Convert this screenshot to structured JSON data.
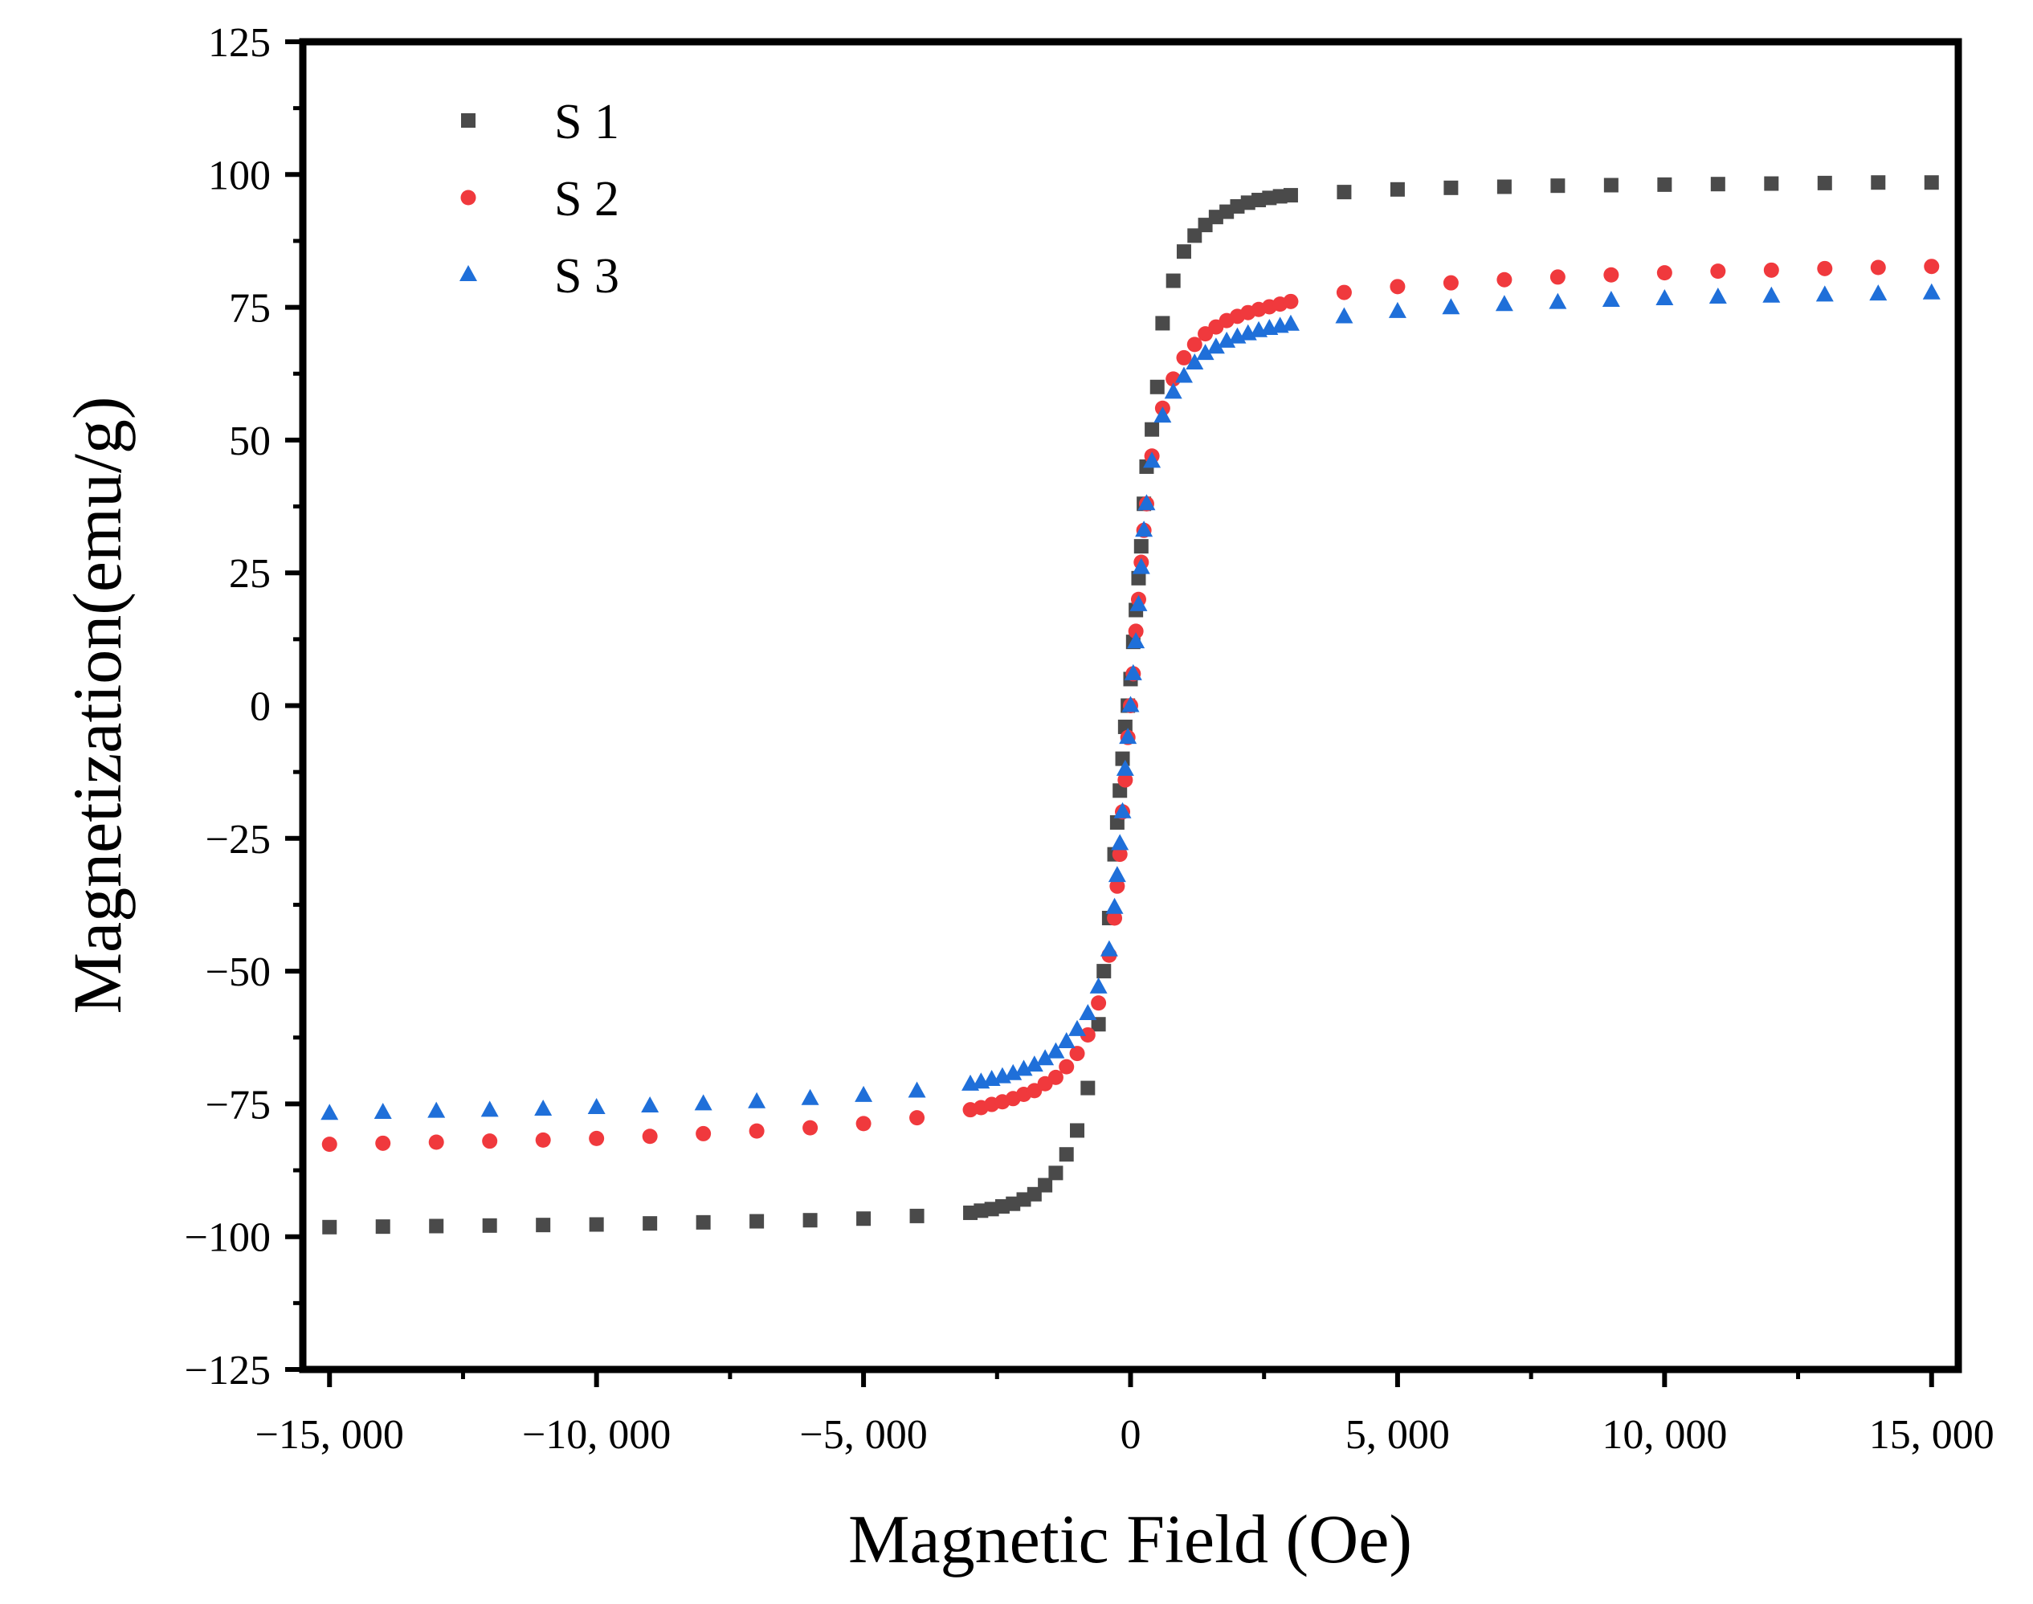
{
  "chart_data": {
    "type": "scatter",
    "title": "",
    "xlabel": "Magnetic Field (Oe)",
    "ylabel": "Magnetization(emu/g)",
    "xlim": [
      -15500,
      15500
    ],
    "ylim": [
      -125,
      125
    ],
    "xticks": [
      -15000,
      -10000,
      -5000,
      0,
      5000,
      10000,
      15000
    ],
    "xtick_labels": [
      "−15, 000",
      "−10, 000",
      "−5, 000",
      "0",
      "5, 000",
      "10, 000",
      "15, 000"
    ],
    "yticks": [
      -125,
      -100,
      -75,
      -50,
      -25,
      0,
      25,
      50,
      75,
      100,
      125
    ],
    "ytick_labels": [
      "−125",
      "−100",
      "−75",
      "−50",
      "−25",
      "0",
      "25",
      "50",
      "75",
      "100",
      "125"
    ],
    "grid": false,
    "legend_position": "top-left",
    "series": [
      {
        "name": "S 1",
        "marker": "square",
        "color": "#4a4a4a",
        "x": [
          -15000,
          -14000,
          -13000,
          -12000,
          -11000,
          -10000,
          -9000,
          -8000,
          -7000,
          -6000,
          -5000,
          -4000,
          -3000,
          -2800,
          -2600,
          -2400,
          -2200,
          -2000,
          -1800,
          -1600,
          -1400,
          -1200,
          -1000,
          -800,
          -600,
          -500,
          -400,
          -300,
          -250,
          -200,
          -150,
          -100,
          -50,
          0,
          50,
          100,
          150,
          200,
          250,
          300,
          400,
          500,
          600,
          800,
          1000,
          1200,
          1400,
          1600,
          1800,
          2000,
          2200,
          2400,
          2600,
          2800,
          3000,
          4000,
          5000,
          6000,
          7000,
          8000,
          9000,
          10000,
          11000,
          12000,
          13000,
          14000,
          15000
        ],
        "y": [
          -98.2,
          -98.1,
          -98.0,
          -97.9,
          -97.8,
          -97.7,
          -97.5,
          -97.3,
          -97.1,
          -96.9,
          -96.6,
          -96.1,
          -95.5,
          -95.1,
          -94.8,
          -94.3,
          -93.8,
          -93.0,
          -92.0,
          -90.3,
          -88.0,
          -84.5,
          -80.0,
          -72.0,
          -60.0,
          -50.0,
          -40.0,
          -28.0,
          -22.0,
          -16.0,
          -10.0,
          -4.0,
          0.0,
          5.0,
          12.0,
          18.0,
          24.0,
          30.0,
          38.0,
          45.0,
          52.0,
          60.0,
          72.0,
          80.0,
          85.5,
          88.5,
          90.5,
          92.0,
          93.0,
          94.0,
          94.7,
          95.2,
          95.6,
          95.9,
          96.1,
          96.7,
          97.2,
          97.5,
          97.7,
          97.9,
          98.0,
          98.1,
          98.2,
          98.3,
          98.4,
          98.5,
          98.5
        ]
      },
      {
        "name": "S 2",
        "marker": "circle",
        "color": "#f0393d",
        "x": [
          -15000,
          -14000,
          -13000,
          -12000,
          -11000,
          -10000,
          -9000,
          -8000,
          -7000,
          -6000,
          -5000,
          -4000,
          -3000,
          -2800,
          -2600,
          -2400,
          -2200,
          -2000,
          -1800,
          -1600,
          -1400,
          -1200,
          -1000,
          -800,
          -600,
          -400,
          -300,
          -250,
          -200,
          -150,
          -100,
          -50,
          0,
          50,
          100,
          150,
          200,
          250,
          300,
          400,
          600,
          800,
          1000,
          1200,
          1400,
          1600,
          1800,
          2000,
          2200,
          2400,
          2600,
          2800,
          3000,
          4000,
          5000,
          6000,
          7000,
          8000,
          9000,
          10000,
          11000,
          12000,
          13000,
          14000,
          15000
        ],
        "y": [
          -82.6,
          -82.4,
          -82.2,
          -82.0,
          -81.8,
          -81.5,
          -81.1,
          -80.6,
          -80.1,
          -79.5,
          -78.7,
          -77.6,
          -76.1,
          -75.7,
          -75.1,
          -74.6,
          -74.0,
          -73.2,
          -72.5,
          -71.2,
          -70.0,
          -68.0,
          -65.5,
          -62.0,
          -56.0,
          -47.0,
          -40.0,
          -34.0,
          -28.0,
          -20.0,
          -14.0,
          -6.0,
          0.0,
          6.0,
          14.0,
          20.0,
          27.0,
          33.0,
          38.0,
          47.0,
          56.0,
          61.5,
          65.5,
          68.0,
          70.0,
          71.3,
          72.5,
          73.3,
          74.0,
          74.6,
          75.1,
          75.6,
          76.1,
          77.8,
          78.9,
          79.6,
          80.2,
          80.7,
          81.1,
          81.5,
          81.8,
          82.0,
          82.3,
          82.5,
          82.7
        ]
      },
      {
        "name": "S 3",
        "marker": "triangle",
        "color": "#1f6fd9",
        "x": [
          -15000,
          -14000,
          -13000,
          -12000,
          -11000,
          -10000,
          -9000,
          -8000,
          -7000,
          -6000,
          -5000,
          -4000,
          -3000,
          -2800,
          -2600,
          -2400,
          -2200,
          -2000,
          -1800,
          -1600,
          -1400,
          -1200,
          -1000,
          -800,
          -600,
          -400,
          -300,
          -250,
          -200,
          -150,
          -100,
          -50,
          0,
          50,
          100,
          150,
          200,
          250,
          300,
          400,
          600,
          800,
          1000,
          1200,
          1400,
          1600,
          1800,
          2000,
          2200,
          2400,
          2600,
          2800,
          3000,
          4000,
          5000,
          6000,
          7000,
          8000,
          9000,
          10000,
          11000,
          12000,
          13000,
          14000,
          15000
        ],
        "y": [
          -76.8,
          -76.6,
          -76.4,
          -76.2,
          -76.0,
          -75.7,
          -75.4,
          -75.0,
          -74.6,
          -74.0,
          -73.4,
          -72.6,
          -71.3,
          -70.9,
          -70.4,
          -69.9,
          -69.3,
          -68.5,
          -67.7,
          -66.5,
          -65.2,
          -63.3,
          -61.0,
          -58.0,
          -53.0,
          -46.0,
          -38.0,
          -32.0,
          -26.0,
          -20.0,
          -12.0,
          -6.0,
          0.0,
          6.0,
          12.0,
          19.0,
          26.0,
          33.0,
          38.0,
          46.0,
          54.5,
          59.0,
          62.0,
          64.5,
          66.3,
          67.5,
          68.6,
          69.4,
          70.0,
          70.6,
          71.0,
          71.4,
          71.8,
          73.2,
          74.2,
          74.9,
          75.5,
          75.9,
          76.3,
          76.6,
          76.9,
          77.1,
          77.3,
          77.5,
          77.7
        ]
      }
    ]
  }
}
